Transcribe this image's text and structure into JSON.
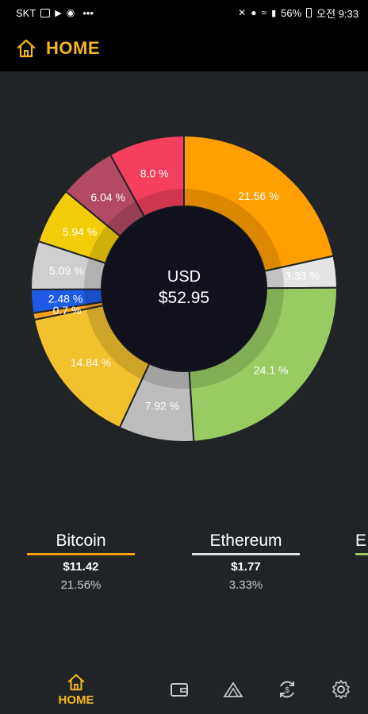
{
  "status_bar": {
    "carrier": "SKT",
    "battery": "56%",
    "time": "오전 9:33",
    "dots": "•••"
  },
  "header": {
    "title": "HOME",
    "home_icon": "home-icon"
  },
  "donut": {
    "currency": "USD",
    "total": "$52.95",
    "slices": [
      {
        "label": "21.56 %",
        "value": 21.56,
        "color": "#ff9f00",
        "label_color": "#ffffff"
      },
      {
        "label": "3.33 %",
        "value": 3.33,
        "color": "#e4e4e4",
        "label_color": "#ffffff"
      },
      {
        "label": "24.1 %",
        "value": 24.1,
        "color": "#9acb63",
        "label_color": "#ffffff"
      },
      {
        "label": "7.92 %",
        "value": 7.92,
        "color": "#bdbdbd",
        "label_color": "#ffffff"
      },
      {
        "label": "14.84 %",
        "value": 14.84,
        "color": "#f2c12e",
        "label_color": "#ffffff"
      },
      {
        "label": "0.7 %",
        "value": 0.7,
        "color": "#f7a21b",
        "label_color": "#ffffff"
      },
      {
        "label": "2.48 %",
        "value": 2.48,
        "color": "#1e5be6",
        "label_color": "#ffffff"
      },
      {
        "label": "5.09 %",
        "value": 5.09,
        "color": "#cfcfcf",
        "label_color": "#ffffff"
      },
      {
        "label": "5.94 %",
        "value": 5.94,
        "color": "#f2cd07",
        "label_color": "#ffffff"
      },
      {
        "label": "6.04 %",
        "value": 6.04,
        "color": "#b34a63",
        "label_color": "#ffffff"
      },
      {
        "label": "8.0 %",
        "value": 8.0,
        "color": "#f43f5e",
        "label_color": "#ffffff"
      }
    ]
  },
  "coins": [
    {
      "name": "Bitcoin",
      "value": "$11.42",
      "percent": "21.56%",
      "color": "#ff9f00"
    },
    {
      "name": "Ethereum",
      "value": "$1.77",
      "percent": "3.33%",
      "color": "#e4e4e4"
    },
    {
      "name": "E",
      "value": "",
      "percent": "",
      "color": "#9acb63"
    }
  ],
  "nav": {
    "home_label": "HOME",
    "items": [
      "home-icon",
      "wallet-icon",
      "market-icon",
      "exchange-icon",
      "gear-icon"
    ]
  }
}
